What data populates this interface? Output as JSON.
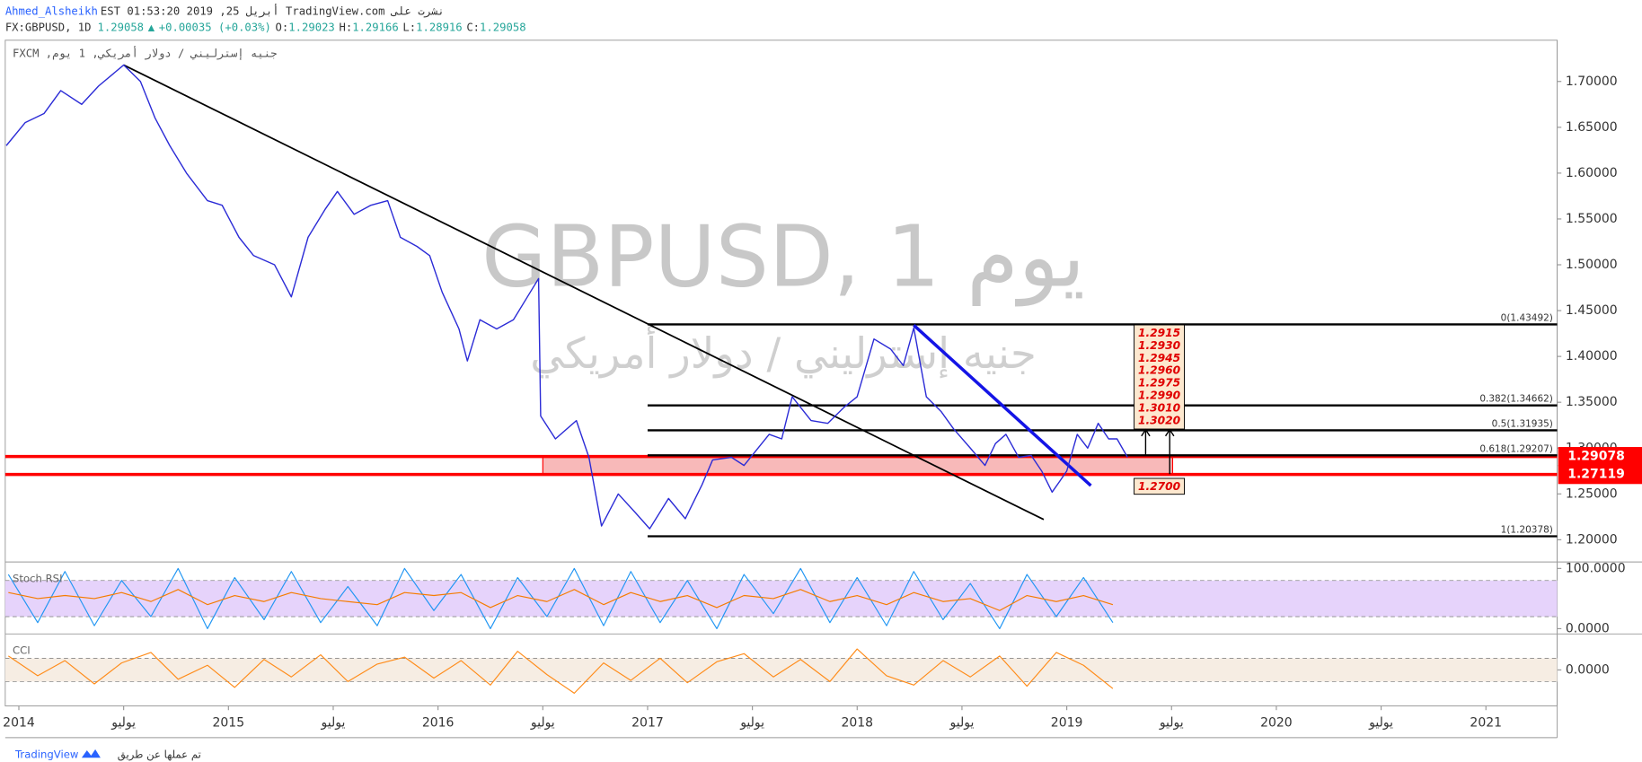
{
  "header": {
    "author": "Ahmed_Alsheikh",
    "published": "EST 01:53:20 2019 ,أبريل 25 TradingView.com نشرت على",
    "quote": [
      "FX:GBPUSD, 1D",
      "1.29058",
      "▲",
      "+0.00035 (+0.03%)",
      "O:",
      "1.29023",
      "H:",
      "1.29166",
      "L:",
      "1.28916",
      "C:",
      "1.29058"
    ]
  },
  "chart_data": {
    "type": "line",
    "pane_title": "FXCM ,جنيه إسترليني / دولار أمريكي, 1 يوم",
    "watermark": "GBPUSD, 1 يوم",
    "watermark_subtitle": "جنيه إسترليني / دولار أمريكي",
    "xlim": [
      2013.935,
      2021.34
    ],
    "xticks": [
      2014,
      {
        "value": 2014.5,
        "label": "يوليو"
      },
      2015,
      {
        "value": 2015.5,
        "label": "يوليو"
      },
      2016,
      {
        "value": 2016.5,
        "label": "يوليو"
      },
      2017,
      {
        "value": 2017.5,
        "label": "يوليو"
      },
      2018,
      {
        "value": 2018.5,
        "label": "يوليو"
      },
      2019,
      {
        "value": 2019.5,
        "label": "يوليو"
      },
      2020,
      {
        "value": 2020.5,
        "label": "يوليو"
      },
      2021
    ],
    "ylim": [
      1.1769,
      1.745
    ],
    "yticks": [
      {
        "value": 1.2,
        "label": "1.20000"
      },
      {
        "value": 1.25,
        "label": "1.25000"
      },
      {
        "value": 1.3,
        "label": "1.30000"
      },
      {
        "value": 1.35,
        "label": "1.35000"
      },
      {
        "value": 1.4,
        "label": "1.40000"
      },
      {
        "value": 1.45,
        "label": "1.45000"
      },
      {
        "value": 1.5,
        "label": "1.50000"
      },
      {
        "value": 1.55,
        "label": "1.55000"
      },
      {
        "value": 1.6,
        "label": "1.60000"
      },
      {
        "value": 1.65,
        "label": "1.65000"
      },
      {
        "value": 1.7,
        "label": "1.70000"
      }
    ],
    "series": [
      {
        "color": "#2b2bd6",
        "x": [
          2013.94,
          2014.03,
          2014.12,
          2014.2,
          2014.3,
          2014.38,
          2014.5,
          2014.58,
          2014.65,
          2014.72,
          2014.8,
          2014.9,
          2014.97,
          2015.05,
          2015.12,
          2015.22,
          2015.3,
          2015.38,
          2015.46,
          2015.52,
          2015.6,
          2015.68,
          2015.76,
          2015.82,
          2015.9,
          2015.96,
          2016.02,
          2016.1,
          2016.14,
          2016.2,
          2016.28,
          2016.36,
          2016.44,
          2016.48,
          2016.49,
          2016.56,
          2016.66,
          2016.72,
          2016.76,
          2016.78,
          2016.86,
          2016.94,
          2017.01,
          2017.1,
          2017.18,
          2017.26,
          2017.31,
          2017.4,
          2017.46,
          2017.58,
          2017.64,
          2017.69,
          2017.78,
          2017.86,
          2017.94,
          2018.0,
          2018.08,
          2018.16,
          2018.22,
          2018.27,
          2018.33,
          2018.4,
          2018.46,
          2018.54,
          2018.61,
          2018.66,
          2018.71,
          2018.77,
          2018.83,
          2018.88,
          2018.93,
          2018.97,
          2019.0,
          2019.05,
          2019.1,
          2019.15,
          2019.2,
          2019.24,
          2019.29
        ],
        "values": [
          1.63,
          1.655,
          1.665,
          1.69,
          1.675,
          1.695,
          1.718,
          1.7,
          1.66,
          1.63,
          1.6,
          1.57,
          1.565,
          1.53,
          1.51,
          1.5,
          1.465,
          1.53,
          1.56,
          1.58,
          1.555,
          1.565,
          1.57,
          1.53,
          1.52,
          1.51,
          1.47,
          1.43,
          1.395,
          1.44,
          1.43,
          1.44,
          1.47,
          1.485,
          1.335,
          1.31,
          1.33,
          1.29,
          1.24,
          1.215,
          1.25,
          1.23,
          1.212,
          1.245,
          1.223,
          1.26,
          1.287,
          1.29,
          1.281,
          1.315,
          1.31,
          1.356,
          1.33,
          1.327,
          1.345,
          1.356,
          1.419,
          1.408,
          1.39,
          1.431,
          1.356,
          1.34,
          1.321,
          1.3,
          1.281,
          1.305,
          1.315,
          1.29,
          1.292,
          1.275,
          1.252,
          1.265,
          1.275,
          1.315,
          1.3,
          1.327,
          1.31,
          1.31,
          1.29
        ]
      }
    ],
    "fib_start": 2017.0,
    "fib_levels": [
      {
        "value": 1.43492,
        "label": "0(1.43492)"
      },
      {
        "value": 1.34662,
        "label": "0.382(1.34662)"
      },
      {
        "value": 1.31935,
        "label": "0.5(1.31935)"
      },
      {
        "value": 1.29207,
        "label": "0.618(1.29207)"
      },
      {
        "value": 1.20378,
        "label": "1(1.20378)"
      }
    ],
    "zone": {
      "x": [
        2016.5,
        2019.505
      ],
      "low": 1.27119,
      "high": 1.29078,
      "color": "#f8b9b9",
      "line_color": "#ff0000"
    },
    "trendlines": [
      {
        "color": "#000000",
        "x": [
          2014.5,
          2018.89
        ],
        "values": [
          1.718,
          1.222
        ]
      },
      {
        "color": "#1414e6",
        "x": [
          2018.27,
          2019.115
        ],
        "values": [
          1.434,
          1.259
        ]
      }
    ],
    "targets": [
      "1.2915",
      "1.2930",
      "1.2945",
      "1.2960",
      "1.2975",
      "1.2990",
      "1.3010",
      "1.3020"
    ],
    "stop": "1.2700"
  },
  "indicators": {
    "x": [
      2013.95,
      2014.09,
      2014.22,
      2014.36,
      2014.49,
      2014.63,
      2014.76,
      2014.9,
      2015.03,
      2015.17,
      2015.3,
      2015.44,
      2015.57,
      2015.71,
      2015.84,
      2015.98,
      2016.11,
      2016.25,
      2016.38,
      2016.52,
      2016.65,
      2016.79,
      2016.92,
      2017.06,
      2017.19,
      2017.33,
      2017.46,
      2017.6,
      2017.73,
      2017.87,
      2018.0,
      2018.14,
      2018.27,
      2018.41,
      2018.54,
      2018.68,
      2018.81,
      2018.95,
      2019.08,
      2019.22
    ],
    "stoch_rsi": {
      "title": "Stoch RSI",
      "ylim": [
        -7,
        109
      ],
      "yticks": [
        {
          "value": 100,
          "label": "100.0000"
        },
        {
          "value": 0,
          "label": "0.0000"
        }
      ],
      "band": [
        20,
        80
      ],
      "series": [
        {
          "color": "#2196f3",
          "values": [
            90,
            10,
            95,
            5,
            80,
            20,
            100,
            0,
            85,
            15,
            95,
            10,
            70,
            5,
            100,
            30,
            90,
            0,
            85,
            20,
            100,
            5,
            95,
            10,
            80,
            0,
            90,
            25,
            100,
            10,
            85,
            5,
            95,
            15,
            75,
            0,
            90,
            20,
            85,
            10
          ]
        },
        {
          "color": "#f57c00",
          "values": [
            60,
            50,
            55,
            50,
            60,
            45,
            65,
            40,
            55,
            45,
            60,
            50,
            45,
            40,
            60,
            55,
            60,
            35,
            55,
            45,
            65,
            40,
            60,
            45,
            55,
            35,
            55,
            50,
            65,
            45,
            55,
            40,
            60,
            45,
            50,
            30,
            55,
            45,
            55,
            40
          ]
        }
      ]
    },
    "cci": {
      "title": "CCI",
      "ylim": [
        -300,
        300
      ],
      "yticks": [
        {
          "value": 0,
          "label": "0.0000"
        }
      ],
      "band": [
        -100,
        100
      ],
      "series": [
        {
          "color": "#ff8c1a",
          "values": [
            120,
            -50,
            80,
            -120,
            60,
            150,
            -80,
            40,
            -150,
            90,
            -60,
            130,
            -100,
            50,
            110,
            -70,
            80,
            -130,
            160,
            -40,
            -200,
            60,
            -90,
            100,
            -110,
            70,
            140,
            -60,
            90,
            -100,
            180,
            -50,
            -130,
            80,
            -60,
            120,
            -140,
            150,
            40,
            -160
          ]
        }
      ]
    }
  },
  "footer": {
    "brand": "TradingView",
    "credit": "تم عملها عن طريق"
  }
}
